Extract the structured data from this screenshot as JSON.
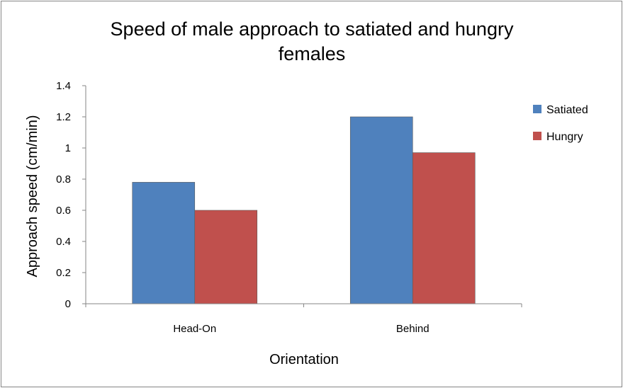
{
  "chart_data": {
    "type": "bar",
    "title_line1": "Speed of male approach to satiated and hungry",
    "title_line2": "females",
    "xlabel": "Orientation",
    "ylabel": "Approach speed (cm/min)",
    "categories": [
      "Head-On",
      "Behind"
    ],
    "series": [
      {
        "name": "Satiated",
        "color": "#4f81bd",
        "values": [
          0.78,
          1.2
        ]
      },
      {
        "name": "Hungry",
        "color": "#c0504d",
        "values": [
          0.6,
          0.97
        ]
      }
    ],
    "ylim": [
      0,
      1.4
    ],
    "yticks": [
      "0",
      "0.2",
      "0.4",
      "0.6",
      "0.8",
      "1",
      "1.2",
      "1.4"
    ],
    "grid": false,
    "legend": "right"
  }
}
